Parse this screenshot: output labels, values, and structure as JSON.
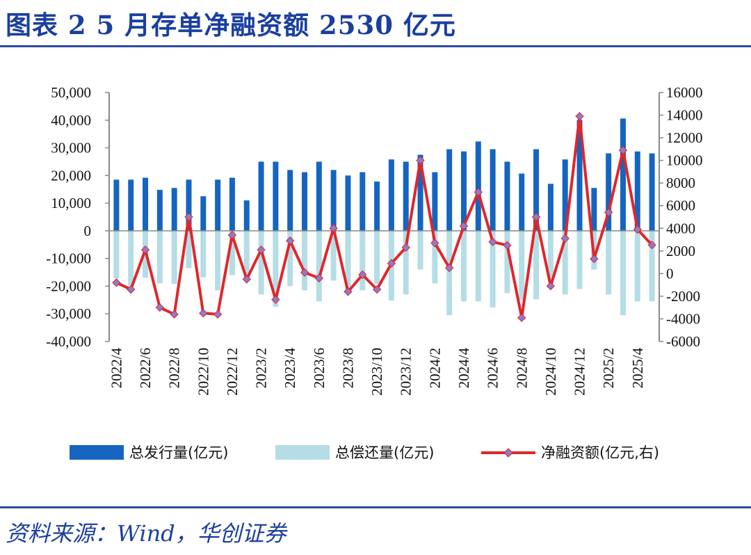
{
  "title": "图表 2   5 月存单净融资额 2530 亿元",
  "source": "资料来源：Wind，华创证券",
  "colors": {
    "title": "#1a3fa0",
    "rule": "#2a4aa0",
    "issuance": "#1565c0",
    "repayment": "#b5dde6",
    "net": "#e0262b",
    "net_marker": "#8e7bc9",
    "axis": "#888888"
  },
  "chart_data": {
    "type": "bar",
    "categories": [
      "2022/4",
      "2022/5",
      "2022/6",
      "2022/7",
      "2022/8",
      "2022/9",
      "2022/10",
      "2022/11",
      "2022/12",
      "2023/1",
      "2023/2",
      "2023/3",
      "2023/4",
      "2023/5",
      "2023/6",
      "2023/7",
      "2023/8",
      "2023/9",
      "2023/10",
      "2023/11",
      "2023/12",
      "2024/1",
      "2024/2",
      "2024/3",
      "2024/4",
      "2024/5",
      "2024/6",
      "2024/7",
      "2024/8",
      "2024/9",
      "2024/10",
      "2024/11",
      "2024/12",
      "2025/1",
      "2025/2",
      "2025/3",
      "2025/4",
      "2025/5"
    ],
    "x_tick_labels": [
      "2022/4",
      "2022/6",
      "2022/8",
      "2022/10",
      "2022/12",
      "2023/2",
      "2023/4",
      "2023/6",
      "2023/8",
      "2023/10",
      "2023/12",
      "2024/2",
      "2024/4",
      "2024/6",
      "2024/8",
      "2024/10",
      "2024/12",
      "2025/2",
      "2025/4"
    ],
    "series": [
      {
        "name": "总发行量(亿元)",
        "axis": "left",
        "kind": "bar",
        "values": [
          18500,
          18500,
          19200,
          14800,
          15500,
          18500,
          12500,
          18500,
          19200,
          11000,
          25000,
          25000,
          22000,
          21200,
          25000,
          22000,
          20000,
          21200,
          17800,
          25800,
          25000,
          27500,
          21200,
          29500,
          28700,
          32300,
          29500,
          25000,
          20700,
          29500,
          17000,
          25800,
          40000,
          15500,
          28000,
          40600,
          28700,
          28000
        ]
      },
      {
        "name": "总偿还量(亿元)",
        "axis": "left",
        "kind": "bar",
        "values": [
          -17200,
          -20000,
          -17000,
          -19000,
          -19200,
          -13500,
          -16800,
          -21500,
          -16000,
          -16800,
          -23000,
          -27500,
          -20000,
          -21500,
          -25500,
          -18000,
          -22000,
          -21500,
          -19200,
          -25200,
          -23000,
          -14000,
          -19000,
          -30500,
          -25500,
          -25500,
          -27700,
          -22500,
          -25000,
          -24800,
          -18000,
          -23000,
          -21000,
          -14000,
          -23000,
          -30500,
          -25500,
          -25500
        ]
      },
      {
        "name": "净融资额(亿元,右)",
        "axis": "right",
        "kind": "line",
        "values": [
          -800,
          -1400,
          2100,
          -3000,
          -3600,
          5000,
          -3500,
          -3600,
          3400,
          -500,
          2100,
          -2300,
          2900,
          100,
          -400,
          4000,
          -1600,
          -100,
          -1400,
          900,
          2300,
          10000,
          2700,
          500,
          4200,
          7200,
          2800,
          2500,
          -3900,
          5000,
          -1100,
          3100,
          13900,
          1300,
          5400,
          10900,
          3900,
          2530
        ]
      }
    ],
    "left_axis": {
      "ylim": [
        -40000,
        50000
      ],
      "ticks": [
        "50,000",
        "40,000",
        "30,000",
        "20,000",
        "10,000",
        "0",
        "-10,000",
        "-20,000",
        "-30,000",
        "-40,000"
      ]
    },
    "right_axis": {
      "ylim": [
        -6000,
        16000
      ],
      "ticks": [
        "16000",
        "14000",
        "12000",
        "10000",
        "8000",
        "6000",
        "4000",
        "2000",
        "0",
        "-2000",
        "-4000",
        "-6000"
      ]
    },
    "legend": {
      "position": "bottom",
      "items": [
        "总发行量(亿元)",
        "总偿还量(亿元)",
        "净融资额(亿元,右)"
      ]
    },
    "grid": false
  }
}
